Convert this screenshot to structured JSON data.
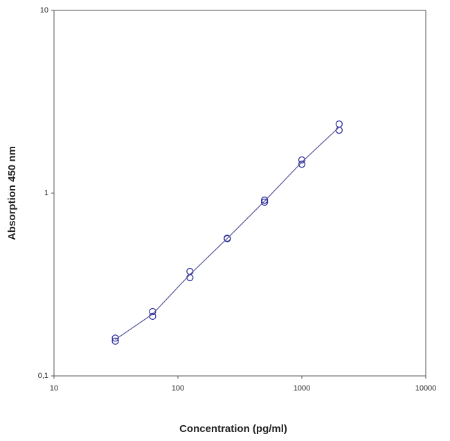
{
  "chart_data": {
    "type": "scatter",
    "xlabel": "Concentration (pg/ml)",
    "ylabel": "Absorption 450 nm",
    "xscale": "log",
    "yscale": "log",
    "xlim": [
      10,
      10000
    ],
    "ylim": [
      0.1,
      10
    ],
    "xticks": [
      10,
      100,
      1000,
      10000
    ],
    "yticks": [
      {
        "value": 0.1,
        "label": "0,1"
      },
      1,
      10
    ],
    "grid": false,
    "series": [
      {
        "kind": "points",
        "color": "#2e2e9e",
        "x": [
          31.25,
          31.25,
          62.5,
          62.5,
          125,
          125,
          250,
          250,
          500,
          500,
          1000,
          1000,
          2000,
          2000
        ],
        "values": [
          0.161,
          0.155,
          0.225,
          0.212,
          0.373,
          0.345,
          0.567,
          0.563,
          0.916,
          0.893,
          1.52,
          1.44,
          2.39,
          2.21
        ]
      },
      {
        "kind": "line",
        "color": "#55559a",
        "x": [
          31.25,
          62.5,
          125,
          250,
          500,
          1000,
          2000
        ],
        "values": [
          0.158,
          0.218,
          0.359,
          0.565,
          0.904,
          1.48,
          2.3
        ]
      }
    ]
  }
}
